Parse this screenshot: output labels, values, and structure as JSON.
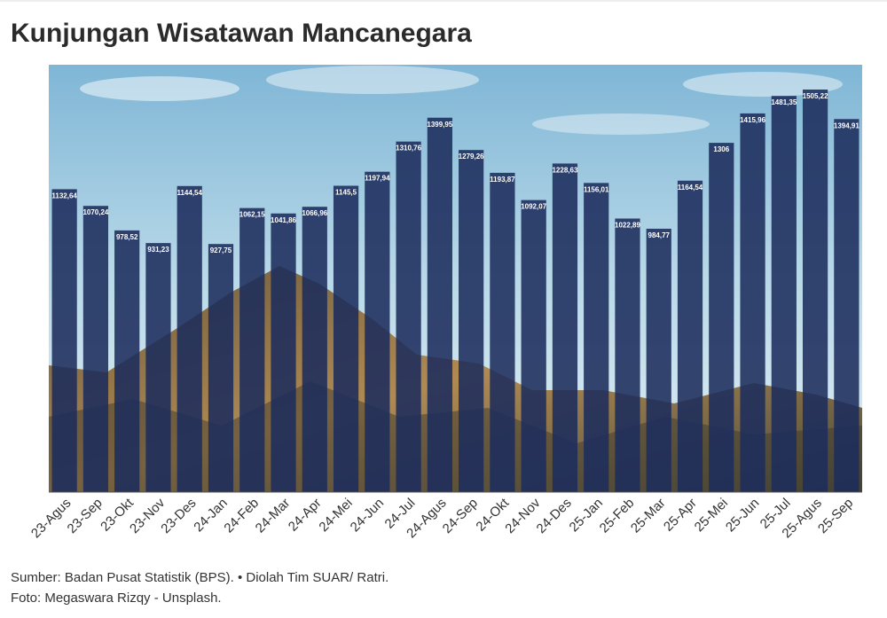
{
  "chart_data": {
    "type": "bar",
    "title": "Kunjungan Wisatawan Mancanegara",
    "categories": [
      "23-Agus",
      "23-Sep",
      "23-Okt",
      "23-Nov",
      "23-Des",
      "24-Jan",
      "24-Feb",
      "24-Mar",
      "24-Apr",
      "24-Mei",
      "24-Jun",
      "24-Jul",
      "24-Agus",
      "24-Sep",
      "24-Okt",
      "24-Nov",
      "24-Des",
      "25-Jan",
      "25-Feb",
      "25-Mar",
      "25-Apr",
      "25-Mei",
      "25-Jun",
      "25-Jul",
      "25-Agus",
      "25-Sep"
    ],
    "values": [
      1132.64,
      1070.24,
      978.52,
      931.23,
      1144.54,
      927.75,
      1062.15,
      1041.86,
      1066.96,
      1145.5,
      1197.94,
      1310.76,
      1399.95,
      1279.26,
      1193.87,
      1092.07,
      1228.63,
      1156.01,
      1022.89,
      984.77,
      1164.54,
      1306,
      1415.96,
      1481.35,
      1505.22,
      1394.91
    ],
    "value_labels": [
      "1132,64",
      "1070,24",
      "978,52",
      "931,23",
      "1144,54",
      "927,75",
      "1062,15",
      "1041,86",
      "1066,96",
      "1145,5",
      "1197,94",
      "1310,76",
      "1399,95",
      "1279,26",
      "1193,87",
      "1092,07",
      "1228,63",
      "1156,01",
      "1022,89",
      "984,77",
      "1164,54",
      "1306",
      "1415,96",
      "1481,35",
      "1505,22",
      "1394,91"
    ],
    "color": "#1c2c5c",
    "source": "Sumber: Badan Pusat Statistik (BPS). • Diolah Tim SUAR/ Ratri.",
    "photo_credit": "Foto: Megaswara Rizqy - Unsplash."
  }
}
